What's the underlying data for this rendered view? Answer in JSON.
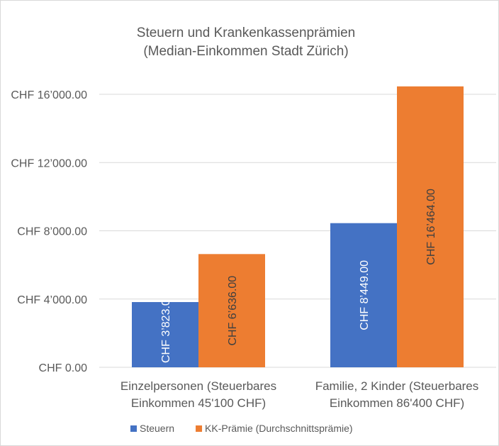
{
  "chart_data": {
    "type": "bar",
    "title": "Steuern und Krankenkassenprämien",
    "subtitle": "(Median-Einkommen Stadt Zürich)",
    "xlabel": "",
    "ylabel": "",
    "categories": [
      [
        "Einzelpersonen (Steuerbares",
        "Einkommen 45'100 CHF)"
      ],
      [
        "Familie, 2 Kinder (Steuerbares",
        "Einkommen 86'400 CHF)"
      ]
    ],
    "series": [
      {
        "name": "Steuern",
        "color": "#4472C4",
        "label_color": "#ffffff",
        "values": [
          3823,
          8449
        ],
        "labels": [
          "CHF 3’823.00",
          "CHF 8’449.00"
        ]
      },
      {
        "name": "KK-Prämie (Durchschnittsprämie)",
        "color": "#ED7D31",
        "label_color": "#404040",
        "values": [
          6636,
          16464
        ],
        "labels": [
          "CHF 6’636.00",
          "CHF 16’464.00"
        ]
      }
    ],
    "ylim": [
      0,
      16000
    ],
    "yticks": [
      0,
      4000,
      8000,
      12000,
      16000
    ],
    "ytick_labels": [
      "CHF 0.00",
      "CHF 4’000.00",
      "CHF 8’000.00",
      "CHF 12’000.00",
      "CHF 16’000.00"
    ],
    "grid": true,
    "legend_position": "bottom"
  }
}
